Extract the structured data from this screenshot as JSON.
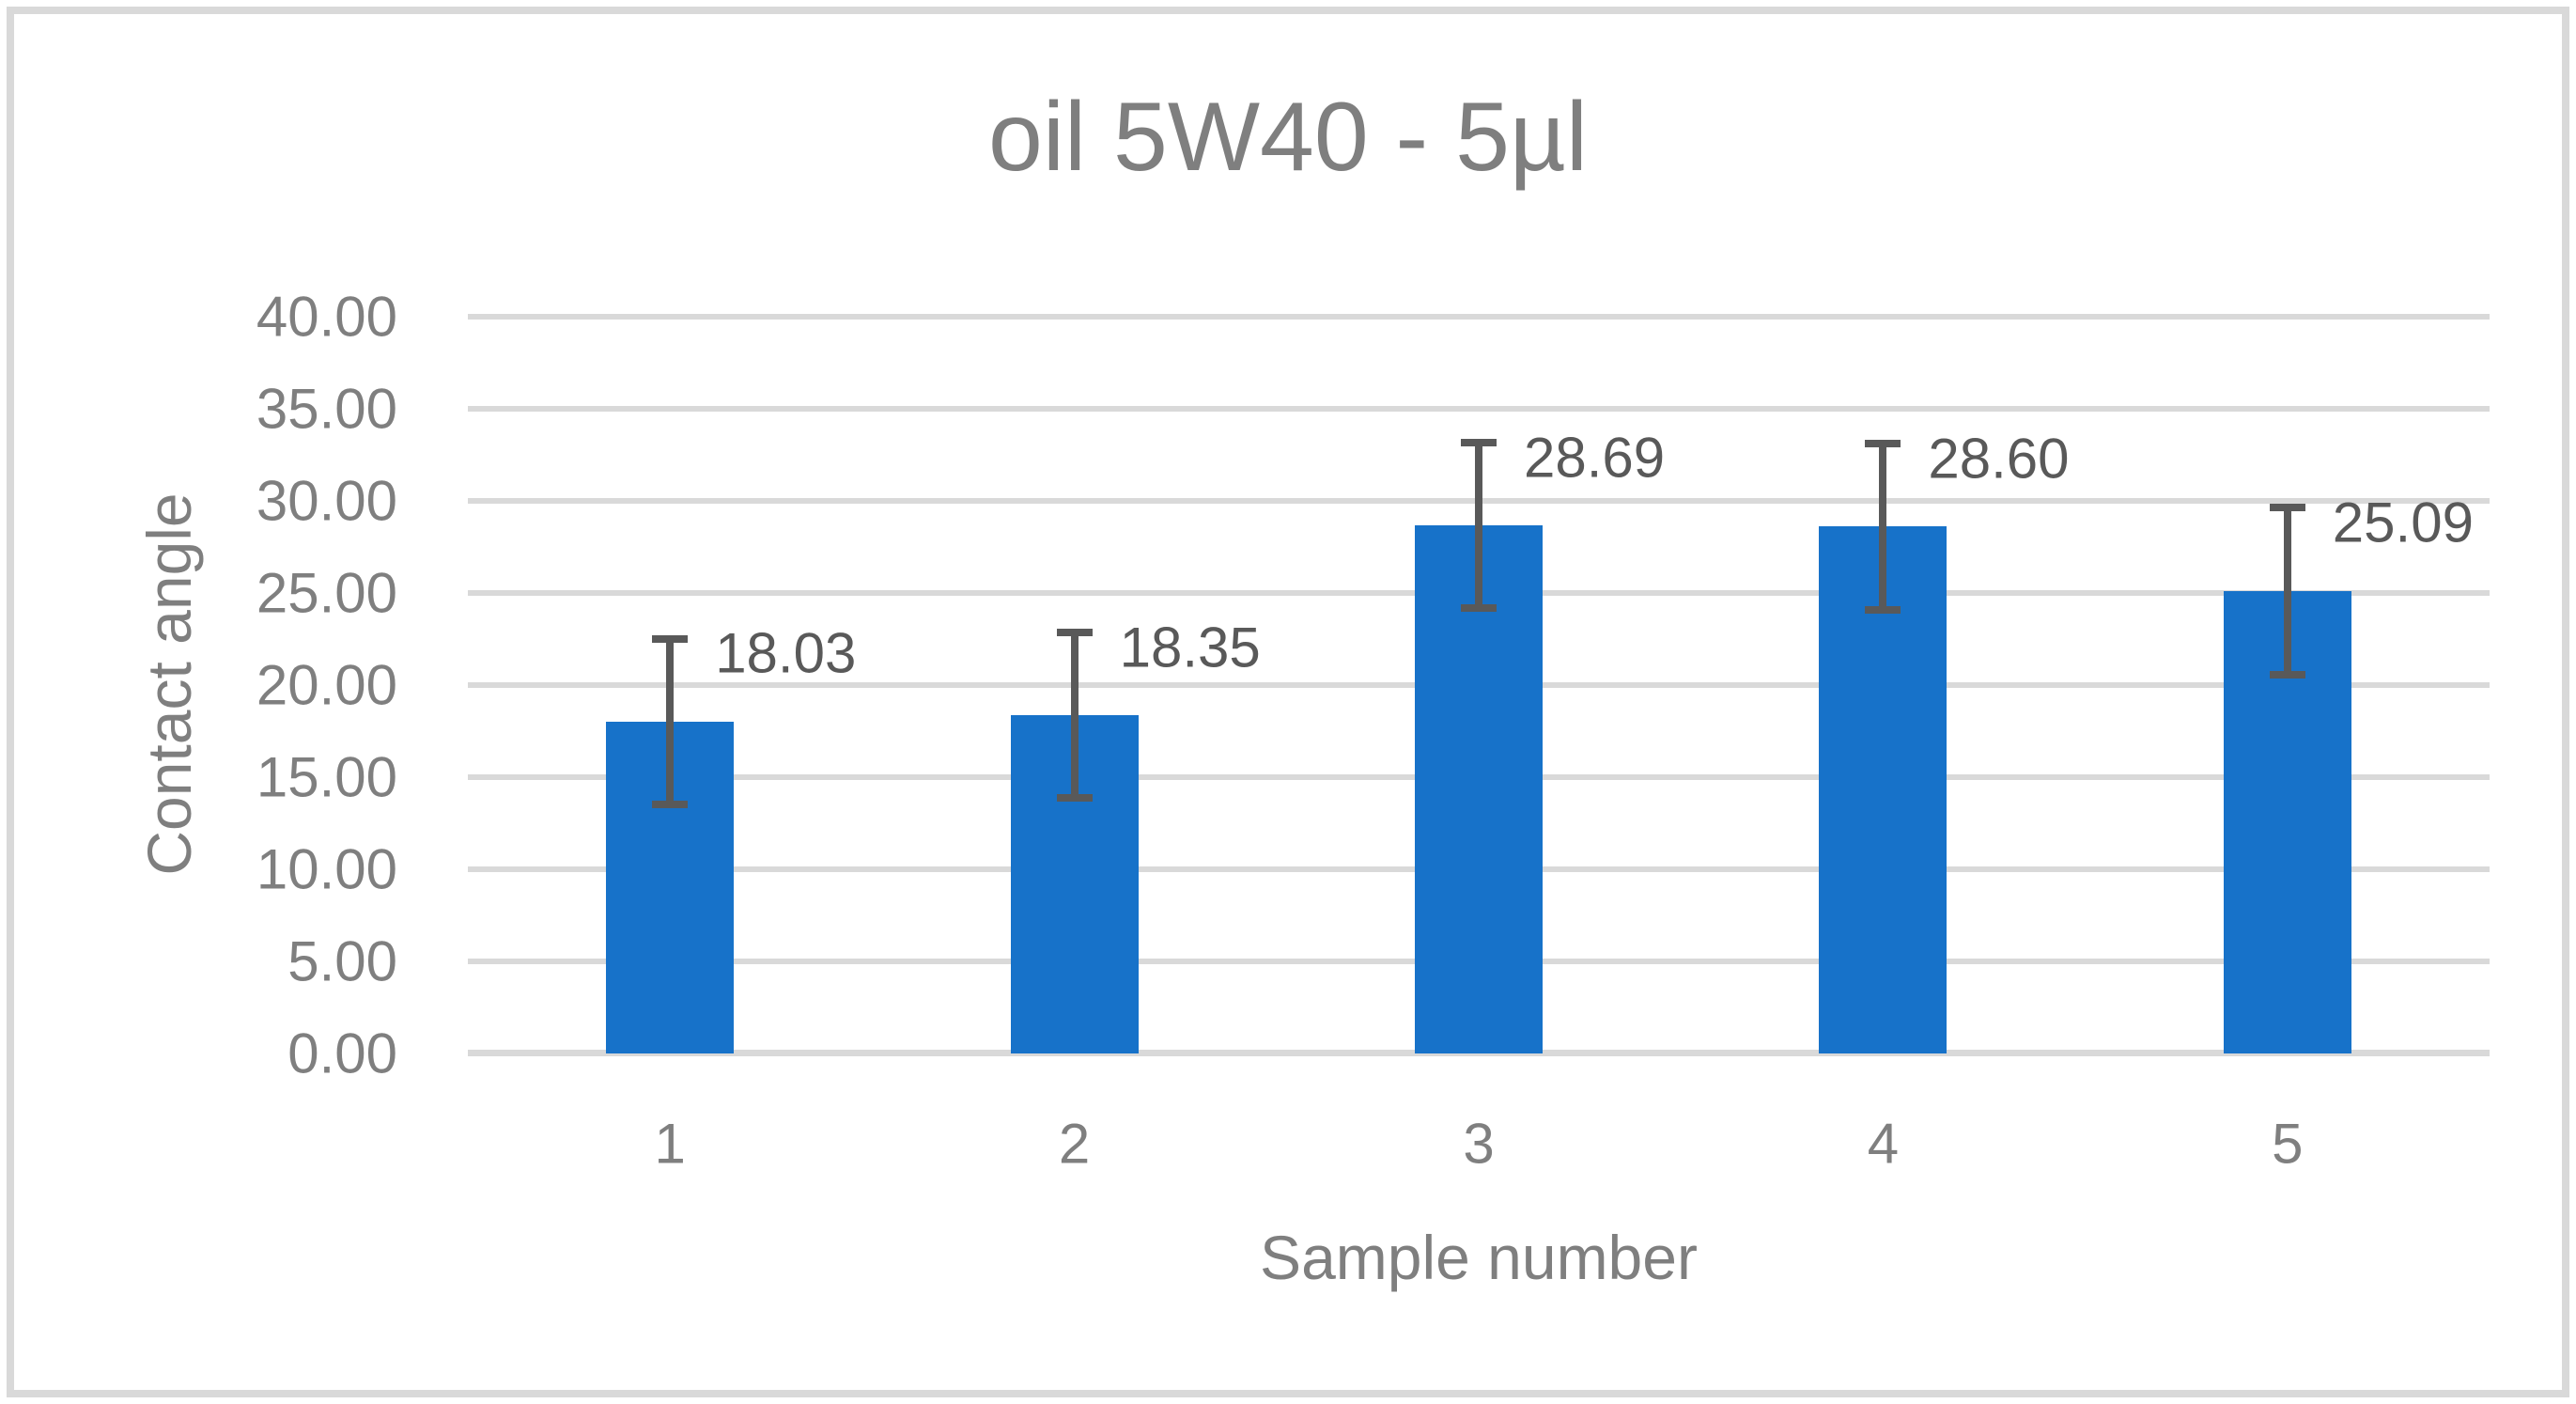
{
  "chart_data": {
    "type": "bar",
    "title": "oil 5W40 - 5µl",
    "xlabel": "Sample number",
    "ylabel": "Contact angle",
    "categories": [
      "1",
      "2",
      "3",
      "4",
      "5"
    ],
    "values": [
      18.03,
      18.35,
      28.69,
      28.6,
      25.09
    ],
    "data_labels": [
      "18.03",
      "18.35",
      "28.69",
      "28.60",
      "25.09"
    ],
    "error_bars": [
      4.7,
      4.7,
      4.7,
      4.7,
      4.75
    ],
    "ylim": [
      0,
      40
    ],
    "ytick_step": 5,
    "ytick_labels": [
      "0.00",
      "5.00",
      "10.00",
      "15.00",
      "20.00",
      "25.00",
      "30.00",
      "35.00",
      "40.00"
    ],
    "grid": true,
    "legend": false,
    "bar_color": "#1772c9",
    "error_color": "#595959",
    "data_label_color": "#595959",
    "axis_text_color": "#7f7f7f",
    "gridline_color": "#d9d9d9",
    "border_color": "#d9d9d9"
  }
}
